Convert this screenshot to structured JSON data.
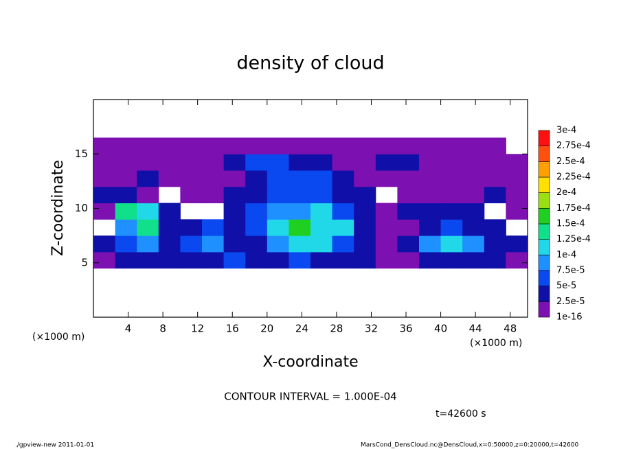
{
  "chart_data": {
    "type": "heatmap",
    "title": "density of cloud",
    "x_label": "X-coordinate",
    "y_label": "Z-coordinate",
    "x_unit": "(×1000 m)",
    "x_unit_right": "(×1000 m)",
    "contour_note": "CONTOUR INTERVAL = 1.000E-04",
    "time_note": "t=42600 s",
    "footer_left": "./gpview-new  2011-01-01",
    "footer_right": "MarsCond_DensCloud.nc@DensCloud,x=0:50000,z=0:20000,t=42600",
    "xlim": [
      0,
      50
    ],
    "ylim": [
      0,
      20
    ],
    "xticks": [
      4,
      8,
      12,
      16,
      20,
      24,
      28,
      32,
      36,
      40,
      44,
      48
    ],
    "yticks": [
      5,
      10,
      15
    ],
    "xbins": [
      0,
      2.5,
      5,
      7.5,
      10,
      12.5,
      15,
      17.5,
      20,
      22.5,
      25,
      27.5,
      30,
      32.5,
      35,
      37.5,
      40,
      42.5,
      45,
      47.5,
      50
    ],
    "ybins": [
      4.5,
      6,
      7.5,
      9,
      10.5,
      12,
      13.5,
      15,
      16.5
    ],
    "values": [
      [
        2e-05,
        3e-05,
        4e-05,
        3e-05,
        3e-05,
        4e-05,
        5e-05,
        3e-05,
        3e-05,
        5e-05,
        4e-05,
        3e-05,
        3e-05,
        2e-05,
        1e-05,
        3e-05,
        4e-05,
        3e-05,
        3e-05,
        2e-05
      ],
      [
        3e-05,
        5e-05,
        9e-05,
        4e-05,
        6e-05,
        8e-05,
        3e-05,
        4e-05,
        8e-05,
        0.00011,
        0.0001,
        6e-05,
        3e-05,
        2e-05,
        3e-05,
        9e-05,
        0.00011,
        8e-05,
        4e-05,
        3e-05
      ],
      [
        null,
        8e-05,
        0.00013,
        4e-05,
        3e-05,
        6e-05,
        3e-05,
        6e-05,
        0.00012,
        0.00015,
        0.00011,
        0.00012,
        4e-05,
        2e-05,
        2e-05,
        4e-05,
        6e-05,
        4e-05,
        3e-05,
        null
      ],
      [
        2e-05,
        0.00014,
        0.0001,
        3e-05,
        null,
        null,
        3e-05,
        5e-05,
        8e-05,
        9e-05,
        0.0001,
        6e-05,
        3e-05,
        2e-05,
        3e-05,
        4e-05,
        3e-05,
        3e-05,
        null,
        2e-05
      ],
      [
        3e-05,
        3e-05,
        2e-05,
        null,
        1e-05,
        2e-05,
        3e-05,
        3e-05,
        6e-05,
        7e-05,
        6e-05,
        4e-05,
        3e-05,
        null,
        1e-05,
        2e-05,
        1e-05,
        2e-05,
        3e-05,
        2e-05
      ],
      [
        2e-05,
        2e-05,
        4e-05,
        2e-05,
        2e-05,
        1e-05,
        2e-05,
        4e-05,
        5e-05,
        6e-05,
        5e-05,
        3e-05,
        2e-05,
        2e-05,
        2e-05,
        2e-05,
        1e-05,
        2e-05,
        2e-05,
        1e-05
      ],
      [
        2e-05,
        2e-05,
        2e-05,
        2e-05,
        1e-05,
        2e-05,
        3e-05,
        5e-05,
        5e-05,
        4e-05,
        3e-05,
        2e-05,
        2e-05,
        3e-05,
        4e-05,
        2e-05,
        2e-05,
        2e-05,
        2e-05,
        2e-05
      ],
      [
        1e-05,
        1e-05,
        1e-05,
        1e-05,
        1e-05,
        1e-05,
        1e-05,
        1e-05,
        1e-05,
        1e-05,
        1e-05,
        1e-05,
        1e-05,
        1e-05,
        1e-05,
        1e-05,
        1e-05,
        1e-05,
        1e-05,
        null
      ]
    ],
    "levels": [
      {
        "value": 1e-16,
        "label": "1e-16"
      },
      {
        "value": 2.5e-05,
        "label": "2.5e-5"
      },
      {
        "value": 5e-05,
        "label": "5e-5"
      },
      {
        "value": 7.5e-05,
        "label": "7.5e-5"
      },
      {
        "value": 0.0001,
        "label": "1e-4"
      },
      {
        "value": 0.000125,
        "label": "1.25e-4"
      },
      {
        "value": 0.00015,
        "label": "1.5e-4"
      },
      {
        "value": 0.000175,
        "label": "1.75e-4"
      },
      {
        "value": 0.0002,
        "label": "2e-4"
      },
      {
        "value": 0.000225,
        "label": "2.25e-4"
      },
      {
        "value": 0.00025,
        "label": "2.5e-4"
      },
      {
        "value": 0.000275,
        "label": "2.75e-4"
      },
      {
        "value": 0.0003,
        "label": "3e-4"
      }
    ],
    "colors": [
      "#7d10b0",
      "#1010a8",
      "#0a48f0",
      "#1e90ff",
      "#20d8e8",
      "#10e08a",
      "#20d020",
      "#9ae010",
      "#ffe000",
      "#ffa000",
      "#ff5010",
      "#ff1010"
    ]
  }
}
